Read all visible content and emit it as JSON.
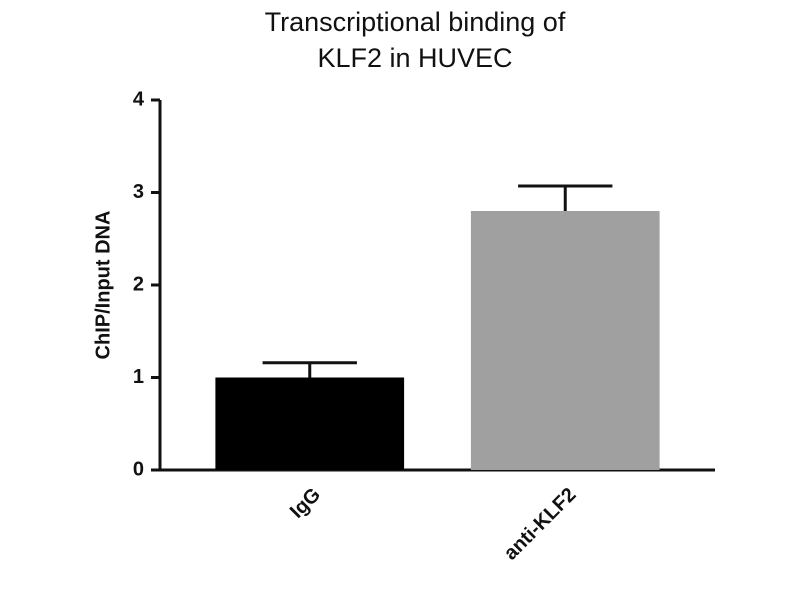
{
  "chart_data": {
    "type": "bar",
    "title": "Transcriptional binding of KLF2 in HUVEC",
    "y_label": "ChIP/Input  DNA",
    "categories": [
      "IgG",
      "anti-KLF2"
    ],
    "values": [
      1.0,
      2.8
    ],
    "errors": [
      0.16,
      0.27
    ],
    "colors": [
      "#000000",
      "#a0a0a0"
    ],
    "ylim": [
      0,
      4
    ],
    "yticks": [
      0,
      1,
      2,
      3,
      4
    ],
    "grid": false
  }
}
